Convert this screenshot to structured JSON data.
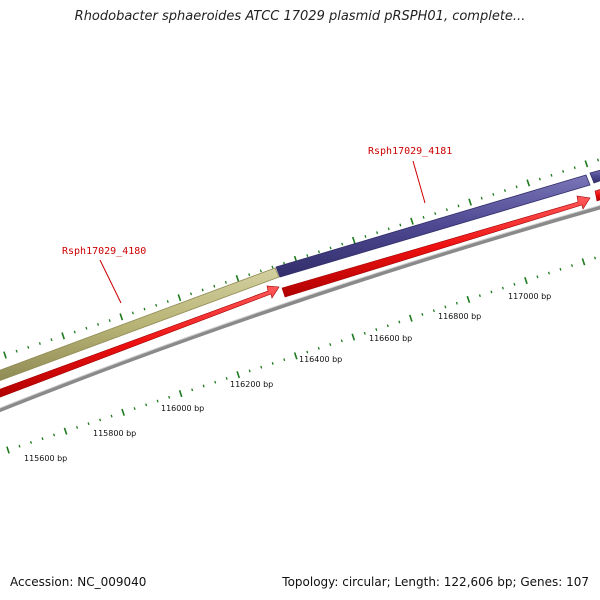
{
  "title": "Rhodobacter sphaeroides ATCC 17029 plasmid pRSPH01, complete...",
  "footer": {
    "accession": "Accession: NC_009040",
    "summary": "Topology: circular; Length: 122,606 bp; Genes: 107"
  },
  "colors": {
    "background": "#ffffff",
    "gene_khaki": "#b8b476",
    "gene_purple": "#4d4891",
    "cds_red": "#ee1111",
    "backbone": "#8a8a8a",
    "tick": "#1e7a1e",
    "gene_label": "#cc0000"
  },
  "genes": [
    {
      "name": "Rsph17029_4180",
      "color": "#b8b476"
    },
    {
      "name": "Rsph17029_4181",
      "color": "#4d4891"
    }
  ],
  "scale": {
    "unit": "bp",
    "labels": [
      "115600 bp",
      "115800 bp",
      "116000 bp",
      "116200 bp",
      "116400 bp",
      "116600 bp",
      "116800 bp",
      "117000 bp"
    ]
  }
}
